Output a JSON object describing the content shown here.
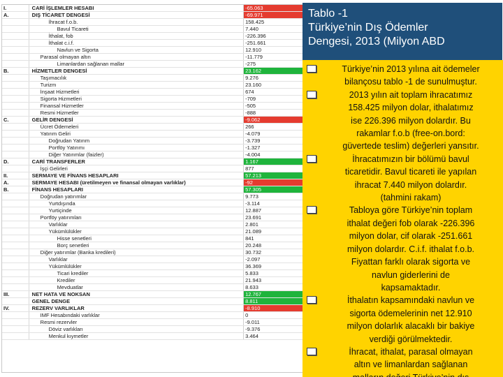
{
  "table": {
    "rows": [
      {
        "sec": "I.",
        "label": "CARİ İŞLEMLER HESABI",
        "value": "-65.063",
        "indent": 0,
        "bold": true,
        "hl": "red"
      },
      {
        "sec": "A.",
        "label": "DIŞ TİCARET DENGESİ",
        "value": "-69.971",
        "indent": 0,
        "bold": true,
        "hl": "red"
      },
      {
        "sec": "",
        "label": "İhracat f.o.b.",
        "value": "158.425",
        "indent": 2,
        "bold": false,
        "hl": ""
      },
      {
        "sec": "",
        "label": "Bavul Ticareti",
        "value": "7.440",
        "indent": 3,
        "bold": false,
        "hl": ""
      },
      {
        "sec": "",
        "label": "İthalat, fob",
        "value": "-226.396",
        "indent": 2,
        "bold": false,
        "hl": ""
      },
      {
        "sec": "",
        "label": "İthalat c.i.f.",
        "value": "-251.661",
        "indent": 2,
        "bold": false,
        "hl": ""
      },
      {
        "sec": "",
        "label": "Navlun ve Sigorta",
        "value": "12.910",
        "indent": 3,
        "bold": false,
        "hl": ""
      },
      {
        "sec": "",
        "label": "Parasal olmayan altın",
        "value": "-11.779",
        "indent": 1,
        "bold": false,
        "hl": ""
      },
      {
        "sec": "",
        "label": "Limanlardan sağlanan mallar",
        "value": "-275",
        "indent": 3,
        "bold": false,
        "hl": ""
      },
      {
        "sec": "B.",
        "label": "HİZMETLER DENGESİ",
        "value": "23.162",
        "indent": 0,
        "bold": true,
        "hl": "green"
      },
      {
        "sec": "",
        "label": "Taşımacılık",
        "value": "9.276",
        "indent": 1,
        "bold": false,
        "hl": ""
      },
      {
        "sec": "",
        "label": "Turizm",
        "value": "23.160",
        "indent": 1,
        "bold": false,
        "hl": ""
      },
      {
        "sec": "",
        "label": "İnşaat Hizmetleri",
        "value": "674",
        "indent": 1,
        "bold": false,
        "hl": ""
      },
      {
        "sec": "",
        "label": "Sigorta Hizmetleri",
        "value": "-709",
        "indent": 1,
        "bold": false,
        "hl": ""
      },
      {
        "sec": "",
        "label": "Finansal Hizmetler",
        "value": "-505",
        "indent": 1,
        "bold": false,
        "hl": ""
      },
      {
        "sec": "",
        "label": "Resmi Hizmetler",
        "value": "-888",
        "indent": 1,
        "bold": false,
        "hl": ""
      },
      {
        "sec": "C.",
        "label": "GELİR DENGESİ",
        "value": "-9.062",
        "indent": 0,
        "bold": true,
        "hl": "red"
      },
      {
        "sec": "",
        "label": "Ücret Ödemeleri",
        "value": "266",
        "indent": 1,
        "bold": false,
        "hl": ""
      },
      {
        "sec": "",
        "label": "Yatırım Geliri",
        "value": "-4.079",
        "indent": 1,
        "bold": false,
        "hl": ""
      },
      {
        "sec": "",
        "label": "Doğrudan Yatırım",
        "value": "-3.739",
        "indent": 2,
        "bold": false,
        "hl": ""
      },
      {
        "sec": "",
        "label": "Portföy Yatırımı",
        "value": "-1.327",
        "indent": 2,
        "bold": false,
        "hl": ""
      },
      {
        "sec": "",
        "label": "Diğer Yatırımlar (faizler)",
        "value": "-4.004",
        "indent": 2,
        "bold": false,
        "hl": ""
      },
      {
        "sec": "D.",
        "label": "CARİ TRANSFERLER",
        "value": "1.167",
        "indent": 0,
        "bold": true,
        "hl": "green"
      },
      {
        "sec": "",
        "label": "İşçi Gelirleri",
        "value": "877",
        "indent": 1,
        "bold": false,
        "hl": ""
      },
      {
        "sec": "II.",
        "label": "SERMAYE VE FİNANS HESAPLARI",
        "value": "57.213",
        "indent": 0,
        "bold": true,
        "hl": "green"
      },
      {
        "sec": "A.",
        "label": "SERMAYE HESABI (üretilmeyen ve finansal olmayan varlıklar)",
        "value": "-92",
        "indent": 0,
        "bold": true,
        "hl": "red"
      },
      {
        "sec": "B.",
        "label": "FİNANS HESAPLARI",
        "value": "57.305",
        "indent": 0,
        "bold": true,
        "hl": "green"
      },
      {
        "sec": "",
        "label": "Doğrudan yatırımlar",
        "value": "9.773",
        "indent": 1,
        "bold": false,
        "hl": ""
      },
      {
        "sec": "",
        "label": "Yurtdışında",
        "value": "-3.114",
        "indent": 2,
        "bold": false,
        "hl": ""
      },
      {
        "sec": "",
        "label": "Yurtiçinde",
        "value": "12.887",
        "indent": 2,
        "bold": false,
        "hl": ""
      },
      {
        "sec": "",
        "label": "Portföy yatırımları",
        "value": "23.691",
        "indent": 1,
        "bold": false,
        "hl": ""
      },
      {
        "sec": "",
        "label": "Varlıklar",
        "value": "2.801",
        "indent": 2,
        "bold": false,
        "hl": ""
      },
      {
        "sec": "",
        "label": "Yükümlülükler",
        "value": "21.089",
        "indent": 2,
        "bold": false,
        "hl": ""
      },
      {
        "sec": "",
        "label": "Hisse senetleri",
        "value": "841",
        "indent": 3,
        "bold": false,
        "hl": ""
      },
      {
        "sec": "",
        "label": "Borç senetleri",
        "value": "20.248",
        "indent": 3,
        "bold": false,
        "hl": ""
      },
      {
        "sec": "",
        "label": "Diğer yatırımlar (Banka kredileri)",
        "value": "30.732",
        "indent": 1,
        "bold": false,
        "hl": ""
      },
      {
        "sec": "",
        "label": "Varlıklar",
        "value": "-2.097",
        "indent": 2,
        "bold": false,
        "hl": ""
      },
      {
        "sec": "",
        "label": "Yükümlülükler",
        "value": "36.369",
        "indent": 2,
        "bold": false,
        "hl": ""
      },
      {
        "sec": "",
        "label": "Ticari krediler",
        "value": "5.833",
        "indent": 3,
        "bold": false,
        "hl": ""
      },
      {
        "sec": "",
        "label": "Krediler",
        "value": "21.943",
        "indent": 3,
        "bold": false,
        "hl": ""
      },
      {
        "sec": "",
        "label": "Mevduatlar",
        "value": "8.633",
        "indent": 3,
        "bold": false,
        "hl": ""
      },
      {
        "sec": "III.",
        "label": "NET HATA VE NOKSAN",
        "value": "12.767",
        "indent": 0,
        "bold": true,
        "hl": "green"
      },
      {
        "sec": "",
        "label": "GENEL DENGE",
        "value": "8.811",
        "indent": 0,
        "bold": true,
        "hl": "green"
      },
      {
        "sec": "IV.",
        "label": "REZERV VARLIKLAR",
        "value": "-8.910",
        "indent": 0,
        "bold": true,
        "hl": "red"
      },
      {
        "sec": "",
        "label": "IMF Hesabındaki varlıklar",
        "value": "0",
        "indent": 1,
        "bold": false,
        "hl": ""
      },
      {
        "sec": "",
        "label": "Resmi rezervler",
        "value": "-9.011",
        "indent": 1,
        "bold": false,
        "hl": ""
      },
      {
        "sec": "",
        "label": "Döviz varlıkları",
        "value": "-9.376",
        "indent": 2,
        "bold": false,
        "hl": ""
      },
      {
        "sec": "",
        "label": "Menkul kıymetler",
        "value": "3.464",
        "indent": 2,
        "bold": false,
        "hl": ""
      }
    ]
  },
  "panel": {
    "title_line1": "Tablo -1",
    "title_line2": "Türkiye’nin Dış Ödemler",
    "title_line3": "Dengesi, 2013 (Milyon ABD",
    "bullets": [
      [
        "Türkiye’nin 2013 yılına ait ödemeler",
        "bilançosu tablo -1 de sunulmuştur."
      ],
      [
        "2013 yılın ait toplam ihracatımız",
        "158.425 milyon dolar, ithalatımız",
        "ise 226.396 milyon dolardır. Bu",
        "rakamlar f.o.b (free-on.bord:",
        "güvertede teslim) değerleri yansıtır."
      ],
      [
        "İhracatımızın bir bölümü bavul",
        "ticaretidir. Bavul ticareti ile yapılan",
        "ihracat 7.440 milyon dolardır.",
        "(tahmini rakam)"
      ],
      [
        " Tabloya göre Türkiye’nin toplam",
        "ithalat değeri fob olarak -226.396",
        "milyon dolar, cif olarak -251.661",
        "milyon dolardır. C.i.f. ithalat f.o.b.",
        "Fiyattan farklı olarak sigorta ve",
        "navlun giderlerini de",
        "kapsamaktadır."
      ],
      [
        "İthalatın kapsamındaki navlun ve",
        "sigorta ödemelerinin net 12.910",
        "milyon dolarlık alacaklı bir bakiye",
        "verdiği görülmektedir."
      ],
      [
        "İhracat, ithalat, parasal olmayan",
        "altın ve limanlardan sağlanan",
        "malların değeri Türkiye’nin dış"
      ]
    ]
  }
}
